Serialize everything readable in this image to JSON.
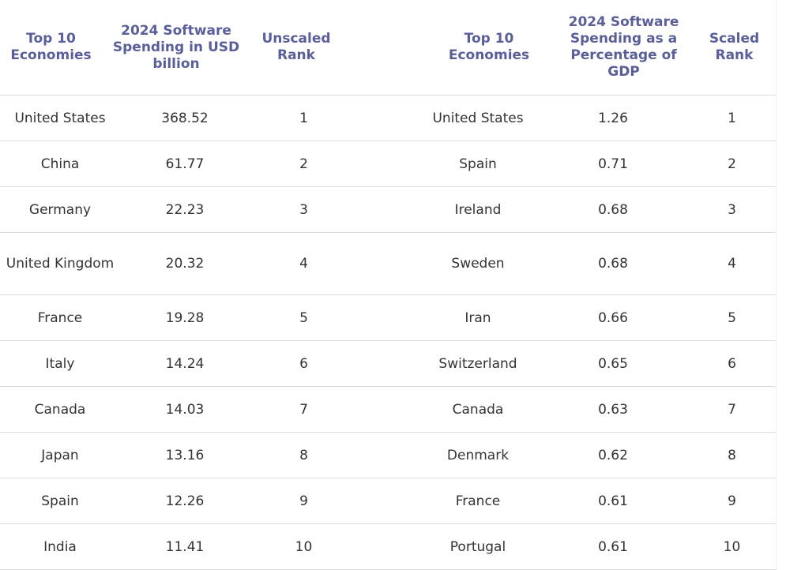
{
  "headers": [
    "Top 10 Economies",
    "2024 Software Spending in USD billion",
    "Unscaled Rank",
    "Top 10 Economies",
    "2024 Software Spending as a Percentage of GDP",
    "Scaled Rank"
  ],
  "rows": [
    {
      "country_a": "United States",
      "spend": "368.52",
      "rank_a": "1",
      "country_b": "United States",
      "pct": "1.26",
      "rank_b": "1"
    },
    {
      "country_a": "China",
      "spend": "61.77",
      "rank_a": "2",
      "country_b": "Spain",
      "pct": "0.71",
      "rank_b": "2"
    },
    {
      "country_a": "Germany",
      "spend": "22.23",
      "rank_a": "3",
      "country_b": "Ireland",
      "pct": "0.68",
      "rank_b": "3"
    },
    {
      "country_a": "United Kingdom",
      "spend": "20.32",
      "rank_a": "4",
      "country_b": "Sweden",
      "pct": "0.68",
      "rank_b": "4"
    },
    {
      "country_a": "France",
      "spend": "19.28",
      "rank_a": "5",
      "country_b": "Iran",
      "pct": "0.66",
      "rank_b": "5"
    },
    {
      "country_a": "Italy",
      "spend": "14.24",
      "rank_a": "6",
      "country_b": "Switzerland",
      "pct": "0.65",
      "rank_b": "6"
    },
    {
      "country_a": "Canada",
      "spend": "14.03",
      "rank_a": "7",
      "country_b": "Canada",
      "pct": "0.63",
      "rank_b": "7"
    },
    {
      "country_a": "Japan",
      "spend": "13.16",
      "rank_a": "8",
      "country_b": "Denmark",
      "pct": "0.62",
      "rank_b": "8"
    },
    {
      "country_a": "Spain",
      "spend": "12.26",
      "rank_a": "9",
      "country_b": "France",
      "pct": "0.61",
      "rank_b": "9"
    },
    {
      "country_a": "India",
      "spend": "11.41",
      "rank_a": "10",
      "country_b": "Portugal",
      "pct": "0.61",
      "rank_b": "10"
    }
  ],
  "colors": {
    "header_text": "#5a5f9a",
    "body_text": "#333333",
    "divider": "#dcdcdc"
  }
}
